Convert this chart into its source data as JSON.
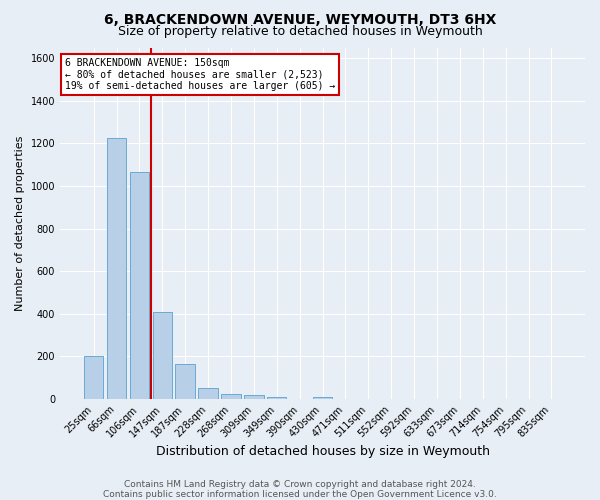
{
  "title1": "6, BRACKENDOWN AVENUE, WEYMOUTH, DT3 6HX",
  "title2": "Size of property relative to detached houses in Weymouth",
  "xlabel": "Distribution of detached houses by size in Weymouth",
  "ylabel": "Number of detached properties",
  "footnote1": "Contains HM Land Registry data © Crown copyright and database right 2024.",
  "footnote2": "Contains public sector information licensed under the Open Government Licence v3.0.",
  "categories": [
    "25sqm",
    "66sqm",
    "106sqm",
    "147sqm",
    "187sqm",
    "228sqm",
    "268sqm",
    "309sqm",
    "349sqm",
    "390sqm",
    "430sqm",
    "471sqm",
    "511sqm",
    "552sqm",
    "592sqm",
    "633sqm",
    "673sqm",
    "714sqm",
    "754sqm",
    "795sqm",
    "835sqm"
  ],
  "values": [
    200,
    1225,
    1065,
    410,
    163,
    50,
    25,
    18,
    12,
    0,
    12,
    0,
    0,
    0,
    0,
    0,
    0,
    0,
    0,
    0,
    0
  ],
  "bar_color": "#b8cfe8",
  "bar_edge_color": "#6aaad4",
  "bar_width": 0.85,
  "vline_color": "#cc0000",
  "vline_x_index": 3,
  "annotation_text": "6 BRACKENDOWN AVENUE: 150sqm\n← 80% of detached houses are smaller (2,523)\n19% of semi-detached houses are larger (605) →",
  "annotation_box_color": "white",
  "annotation_box_edge_color": "#cc0000",
  "ylim": [
    0,
    1650
  ],
  "yticks": [
    0,
    200,
    400,
    600,
    800,
    1000,
    1200,
    1400,
    1600
  ],
  "bg_color": "#e8eef5",
  "plot_bg_color": "#e8eef5",
  "grid_color": "white",
  "title1_fontsize": 10,
  "title2_fontsize": 9,
  "xlabel_fontsize": 9,
  "ylabel_fontsize": 8,
  "tick_fontsize": 7,
  "footnote_fontsize": 6.5
}
